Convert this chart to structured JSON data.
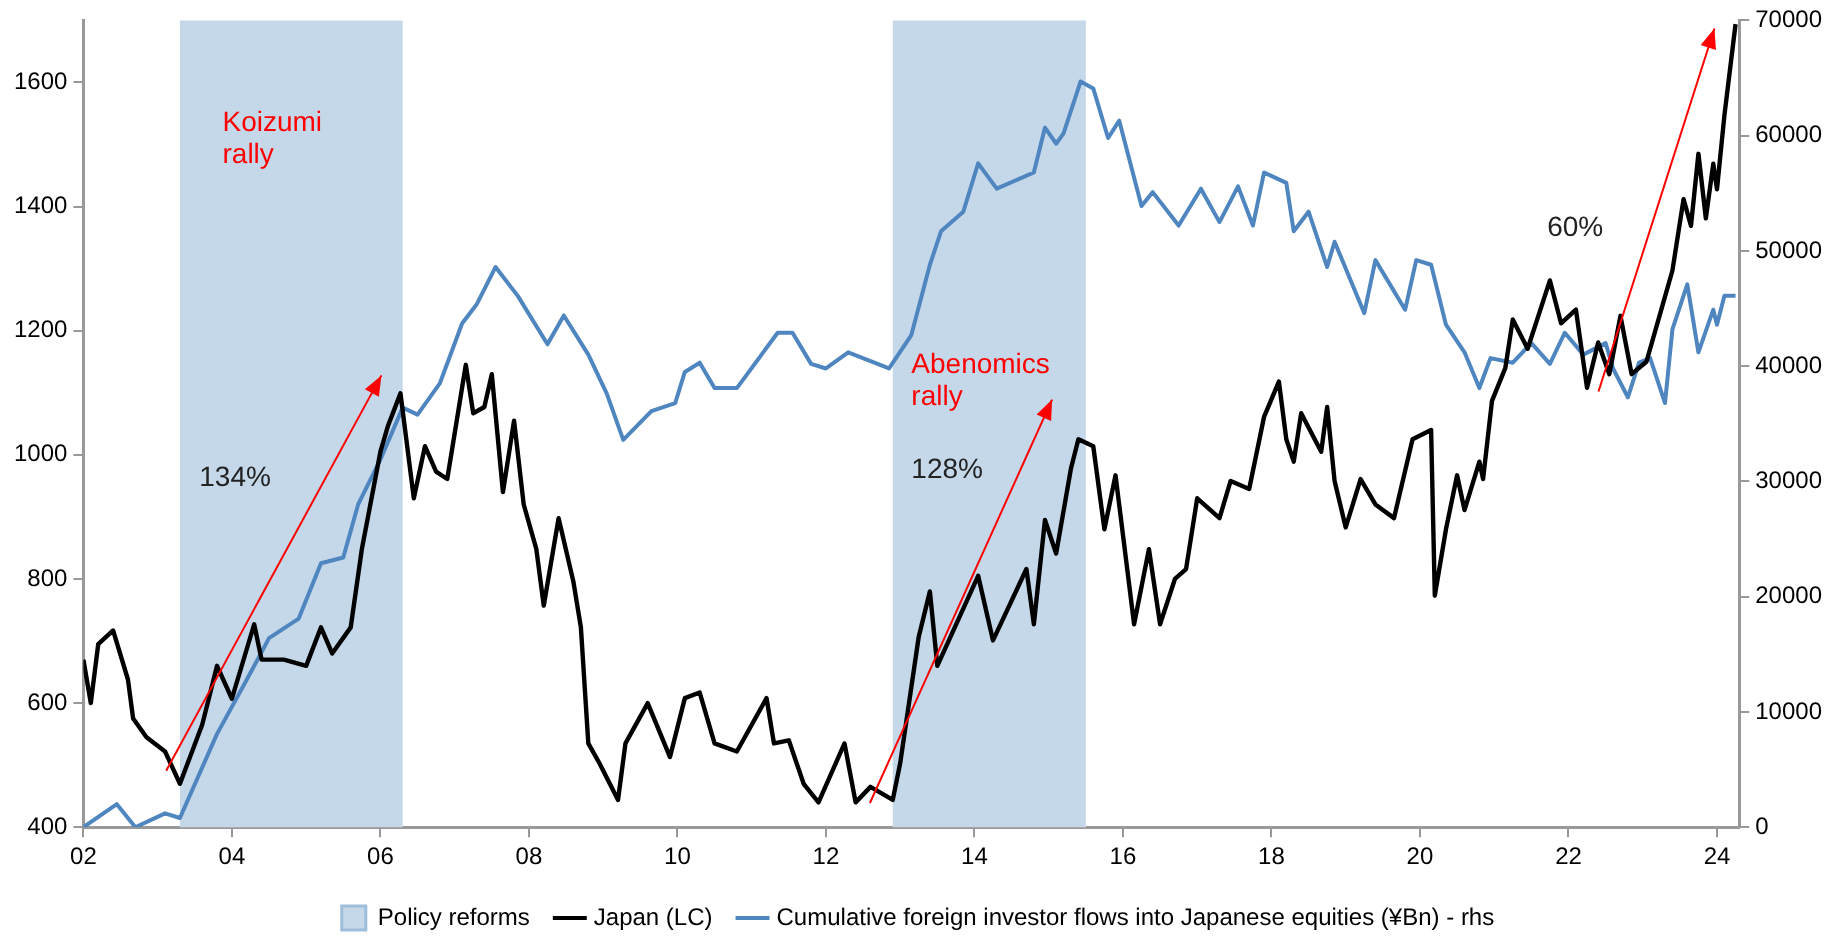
{
  "chart_data": {
    "type": "line",
    "xlim": [
      2002,
      2024.3
    ],
    "xticks": [
      {
        "value": 2002,
        "label": "02"
      },
      {
        "value": 2004,
        "label": "04"
      },
      {
        "value": 2006,
        "label": "06"
      },
      {
        "value": 2008,
        "label": "08"
      },
      {
        "value": 2010,
        "label": "10"
      },
      {
        "value": 2012,
        "label": "12"
      },
      {
        "value": 2014,
        "label": "14"
      },
      {
        "value": 2016,
        "label": "16"
      },
      {
        "value": 2018,
        "label": "18"
      },
      {
        "value": 2020,
        "label": "20"
      },
      {
        "value": 2022,
        "label": "22"
      },
      {
        "value": 2024,
        "label": "24"
      }
    ],
    "ylim": [
      400,
      1700
    ],
    "yticks": [
      400,
      600,
      800,
      1000,
      1200,
      1400,
      1600
    ],
    "y2lim": [
      0,
      70000
    ],
    "y2ticks": [
      0,
      10000,
      20000,
      30000,
      40000,
      50000,
      60000,
      70000
    ],
    "grid": false,
    "legend": "bottom",
    "bands": [
      {
        "axis": "x",
        "from": 2003.3,
        "to": 2006.3,
        "label": "Policy reforms",
        "color": "#c5d8ea"
      },
      {
        "axis": "x",
        "from": 2012.9,
        "to": 2015.5,
        "color": "#c5d8ea"
      }
    ],
    "annotations": [
      "Koizumi rally",
      "134%",
      "Abenomics rally",
      "128%",
      "60%"
    ],
    "series": [
      {
        "name": "Japan (LC)",
        "color": "#000000",
        "axis": "y",
        "x": [
          2002.0,
          2002.1,
          2002.2,
          2002.4,
          2002.6,
          2002.67,
          2002.85,
          2003.1,
          2003.3,
          2003.6,
          2003.8,
          2004.0,
          2004.3,
          2004.4,
          2004.7,
          2005.0,
          2005.2,
          2005.35,
          2005.6,
          2005.75,
          2006.0,
          2006.1,
          2006.27,
          2006.45,
          2006.6,
          2006.75,
          2006.9,
          2007.15,
          2007.25,
          2007.4,
          2007.5,
          2007.65,
          2007.8,
          2007.93,
          2008.1,
          2008.2,
          2008.4,
          2008.6,
          2008.7,
          2008.8,
          2008.95,
          2009.2,
          2009.3,
          2009.6,
          2009.9,
          2010.1,
          2010.3,
          2010.5,
          2010.8,
          2011.2,
          2011.3,
          2011.5,
          2011.7,
          2011.9,
          2012.25,
          2012.4,
          2012.6,
          2012.9,
          2013.0,
          2013.25,
          2013.4,
          2013.5,
          2014.05,
          2014.25,
          2014.7,
          2014.8,
          2014.95,
          2015.1,
          2015.3,
          2015.4,
          2015.6,
          2015.75,
          2015.9,
          2016.15,
          2016.35,
          2016.5,
          2016.7,
          2016.85,
          2017.0,
          2017.3,
          2017.45,
          2017.7,
          2017.9,
          2018.1,
          2018.2,
          2018.3,
          2018.4,
          2018.67,
          2018.75,
          2018.85,
          2019.0,
          2019.2,
          2019.4,
          2019.65,
          2019.9,
          2020.15,
          2020.2,
          2020.35,
          2020.5,
          2020.6,
          2020.8,
          2020.85,
          2020.97,
          2021.15,
          2021.25,
          2021.45,
          2021.75,
          2021.9,
          2022.1,
          2022.25,
          2022.4,
          2022.55,
          2022.7,
          2022.85,
          2023.05,
          2023.25,
          2023.4,
          2023.55,
          2023.65,
          2023.75,
          2023.85,
          2023.95,
          2024.0,
          2024.1,
          2024.25
        ],
        "values": [
          670,
          600,
          695,
          717,
          638,
          575,
          545,
          522,
          470,
          565,
          660,
          607,
          727,
          670,
          670,
          660,
          722,
          680,
          722,
          848,
          1005,
          1046,
          1099,
          930,
          1014,
          973,
          961,
          1145,
          1067,
          1077,
          1130,
          940,
          1055,
          920,
          848,
          757,
          898,
          795,
          722,
          535,
          503,
          444,
          535,
          600,
          513,
          608,
          617,
          535,
          522,
          608,
          535,
          540,
          470,
          440,
          535,
          440,
          465,
          444,
          503,
          707,
          780,
          660,
          805,
          701,
          816,
          727,
          895,
          841,
          978,
          1025,
          1014,
          880,
          967,
          727,
          848,
          727,
          800,
          816,
          930,
          898,
          958,
          945,
          1061,
          1118,
          1025,
          989,
          1067,
          1005,
          1077,
          958,
          883,
          961,
          920,
          898,
          1025,
          1040,
          773,
          880,
          967,
          911,
          989,
          961,
          1087,
          1140,
          1218,
          1171,
          1281,
          1212,
          1234,
          1108,
          1181,
          1130,
          1224,
          1130,
          1150,
          1234,
          1297,
          1412,
          1369,
          1485,
          1381,
          1469,
          1428,
          1547,
          1694
        ]
      },
      {
        "name": "Cumulative foreign investor flows into Japanese equities (¥Bn) - rhs",
        "color": "#4f86c0",
        "axis": "y2",
        "x": [
          2002.0,
          2002.45,
          2002.7,
          2003.1,
          2003.3,
          2003.8,
          2004.15,
          2004.5,
          2004.9,
          2005.2,
          2005.5,
          2005.7,
          2006.0,
          2006.3,
          2006.5,
          2006.8,
          2007.1,
          2007.3,
          2007.55,
          2007.85,
          2008.25,
          2008.47,
          2008.8,
          2009.05,
          2009.27,
          2009.65,
          2009.97,
          2010.1,
          2010.3,
          2010.5,
          2010.8,
          2011.35,
          2011.55,
          2011.8,
          2012.0,
          2012.3,
          2012.85,
          2013.15,
          2013.4,
          2013.55,
          2013.85,
          2014.05,
          2014.3,
          2014.8,
          2014.95,
          2015.1,
          2015.2,
          2015.43,
          2015.6,
          2015.8,
          2015.95,
          2016.25,
          2016.4,
          2016.75,
          2017.05,
          2017.3,
          2017.55,
          2017.75,
          2017.9,
          2018.2,
          2018.3,
          2018.5,
          2018.75,
          2018.85,
          2019.25,
          2019.4,
          2019.8,
          2019.95,
          2020.15,
          2020.35,
          2020.6,
          2020.8,
          2020.95,
          2021.25,
          2021.5,
          2021.75,
          2021.95,
          2022.2,
          2022.5,
          2022.6,
          2022.8,
          2022.95,
          2023.1,
          2023.3,
          2023.4,
          2023.6,
          2023.75,
          2023.95,
          2024.0,
          2024.1,
          2024.25
        ],
        "values": [
          0,
          2000,
          0,
          1200,
          800,
          8100,
          12200,
          16400,
          18100,
          22900,
          23400,
          28000,
          31900,
          36400,
          35800,
          38500,
          43700,
          45400,
          48600,
          46100,
          41900,
          44400,
          41000,
          37600,
          33600,
          36100,
          36800,
          39500,
          40300,
          38100,
          38100,
          42900,
          42900,
          40200,
          39800,
          41200,
          39800,
          42700,
          48800,
          51700,
          53400,
          57600,
          55400,
          56800,
          60700,
          59300,
          60200,
          64700,
          64100,
          59800,
          61300,
          53900,
          55100,
          52200,
          55400,
          52500,
          55600,
          52200,
          56800,
          55900,
          51700,
          53400,
          48600,
          50800,
          44600,
          49200,
          44900,
          49200,
          48800,
          43600,
          41200,
          38100,
          40700,
          40300,
          42000,
          40200,
          42900,
          41000,
          42000,
          39800,
          37300,
          40300,
          40700,
          36800,
          43200,
          47100,
          41200,
          44900,
          43600,
          46100,
          46100
        ]
      }
    ]
  }
}
